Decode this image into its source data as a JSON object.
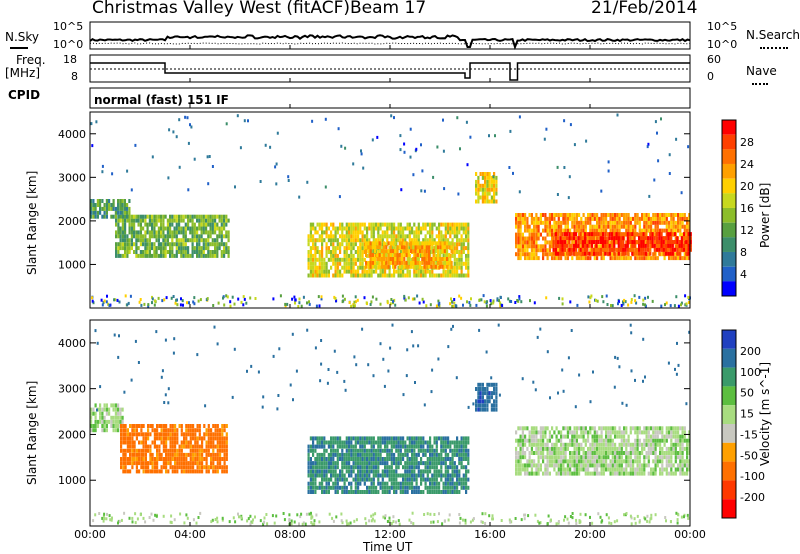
{
  "header": {
    "station": "Christmas Valley West (fitACF)",
    "beam": "Beam 17",
    "date": "21/Feb/2014"
  },
  "noise_panel": {
    "left_label": "N.Sky",
    "right_label": "N.Search",
    "left_ticks": [
      "10^5",
      "10^0"
    ],
    "right_ticks": [
      "10^5",
      "10^0"
    ]
  },
  "freq_panel": {
    "left_label_1": "Freq.",
    "left_label_2": "[MHz]",
    "right_label": "Nave",
    "left_ticks": [
      "18",
      "8"
    ],
    "right_ticks": [
      "60",
      "0"
    ]
  },
  "cpid": {
    "label": "CPID",
    "value": "normal (fast) 151 IF"
  },
  "x_axis": {
    "title": "Time UT",
    "ticks": [
      "00:00",
      "04:00",
      "08:00",
      "12:00",
      "16:00",
      "20:00",
      "00:00"
    ]
  },
  "chart_data": [
    {
      "type": "heatmap",
      "name": "power",
      "ylabel": "Slant Range [km]",
      "yticks": [
        "4000",
        "3000",
        "2000",
        "1000"
      ],
      "xlabel": "Time UT",
      "xlim": [
        0,
        24
      ],
      "ylim": [
        0,
        4500
      ],
      "colorbar": {
        "label": "Power [dB]",
        "ticks": [
          "28",
          "24",
          "20",
          "16",
          "12",
          "8",
          "4"
        ],
        "range": [
          0,
          30
        ],
        "colors": [
          "#0000ff",
          "#2060c8",
          "#2f7a9a",
          "#3c8e6a",
          "#58a040",
          "#8cbd2a",
          "#c7d81e",
          "#ffd000",
          "#ffa000",
          "#ff7000",
          "#ff4000",
          "#ff0000"
        ]
      },
      "regions": [
        {
          "t0": 0.0,
          "t1": 1.6,
          "r0": 2050,
          "r1": 2450,
          "level": 10
        },
        {
          "t0": 1.0,
          "t1": 5.5,
          "r0": 1150,
          "r1": 2100,
          "level": 12
        },
        {
          "t0": 8.7,
          "t1": 15.1,
          "r0": 700,
          "r1": 1900,
          "level": 17
        },
        {
          "t0": 11.0,
          "t1": 14.5,
          "r0": 900,
          "r1": 1500,
          "level": 21
        },
        {
          "t0": 15.4,
          "t1": 16.3,
          "r0": 2400,
          "r1": 3100,
          "level": 18
        },
        {
          "t0": 17.0,
          "t1": 24.0,
          "r0": 1100,
          "r1": 2100,
          "level": 22
        },
        {
          "t0": 18.5,
          "t1": 24.0,
          "r0": 1200,
          "r1": 1700,
          "level": 27
        }
      ]
    },
    {
      "type": "heatmap",
      "name": "velocity",
      "ylabel": "Slant Range [km]",
      "yticks": [
        "4000",
        "3000",
        "2000",
        "1000"
      ],
      "xlabel": "Time UT",
      "xlim": [
        0,
        24
      ],
      "ylim": [
        0,
        4500
      ],
      "colorbar": {
        "label": "Velocity [m s^-1]",
        "ticks": [
          "200",
          "100",
          "50",
          "15",
          "-15",
          "-50",
          "-100",
          "-200"
        ],
        "colors": [
          "#2040c0",
          "#2a70a0",
          "#3a9a6a",
          "#5cbe40",
          "#a8dc80",
          "#c8c8c0",
          "#ffa000",
          "#ff7000",
          "#ff3800",
          "#ff0000"
        ]
      },
      "regions": [
        {
          "t0": 0.0,
          "t1": 1.3,
          "r0": 2050,
          "r1": 2600,
          "vel": 0
        },
        {
          "t0": 1.2,
          "t1": 5.5,
          "r0": 1150,
          "r1": 2150,
          "vel": -120
        },
        {
          "t0": 8.7,
          "t1": 15.1,
          "r0": 700,
          "r1": 1950,
          "vel": 90
        },
        {
          "t0": 15.4,
          "t1": 16.3,
          "r0": 2500,
          "r1": 3100,
          "vel": 180
        },
        {
          "t0": 17.0,
          "t1": 24.0,
          "r0": 1100,
          "r1": 2100,
          "vel": 0
        }
      ]
    }
  ]
}
